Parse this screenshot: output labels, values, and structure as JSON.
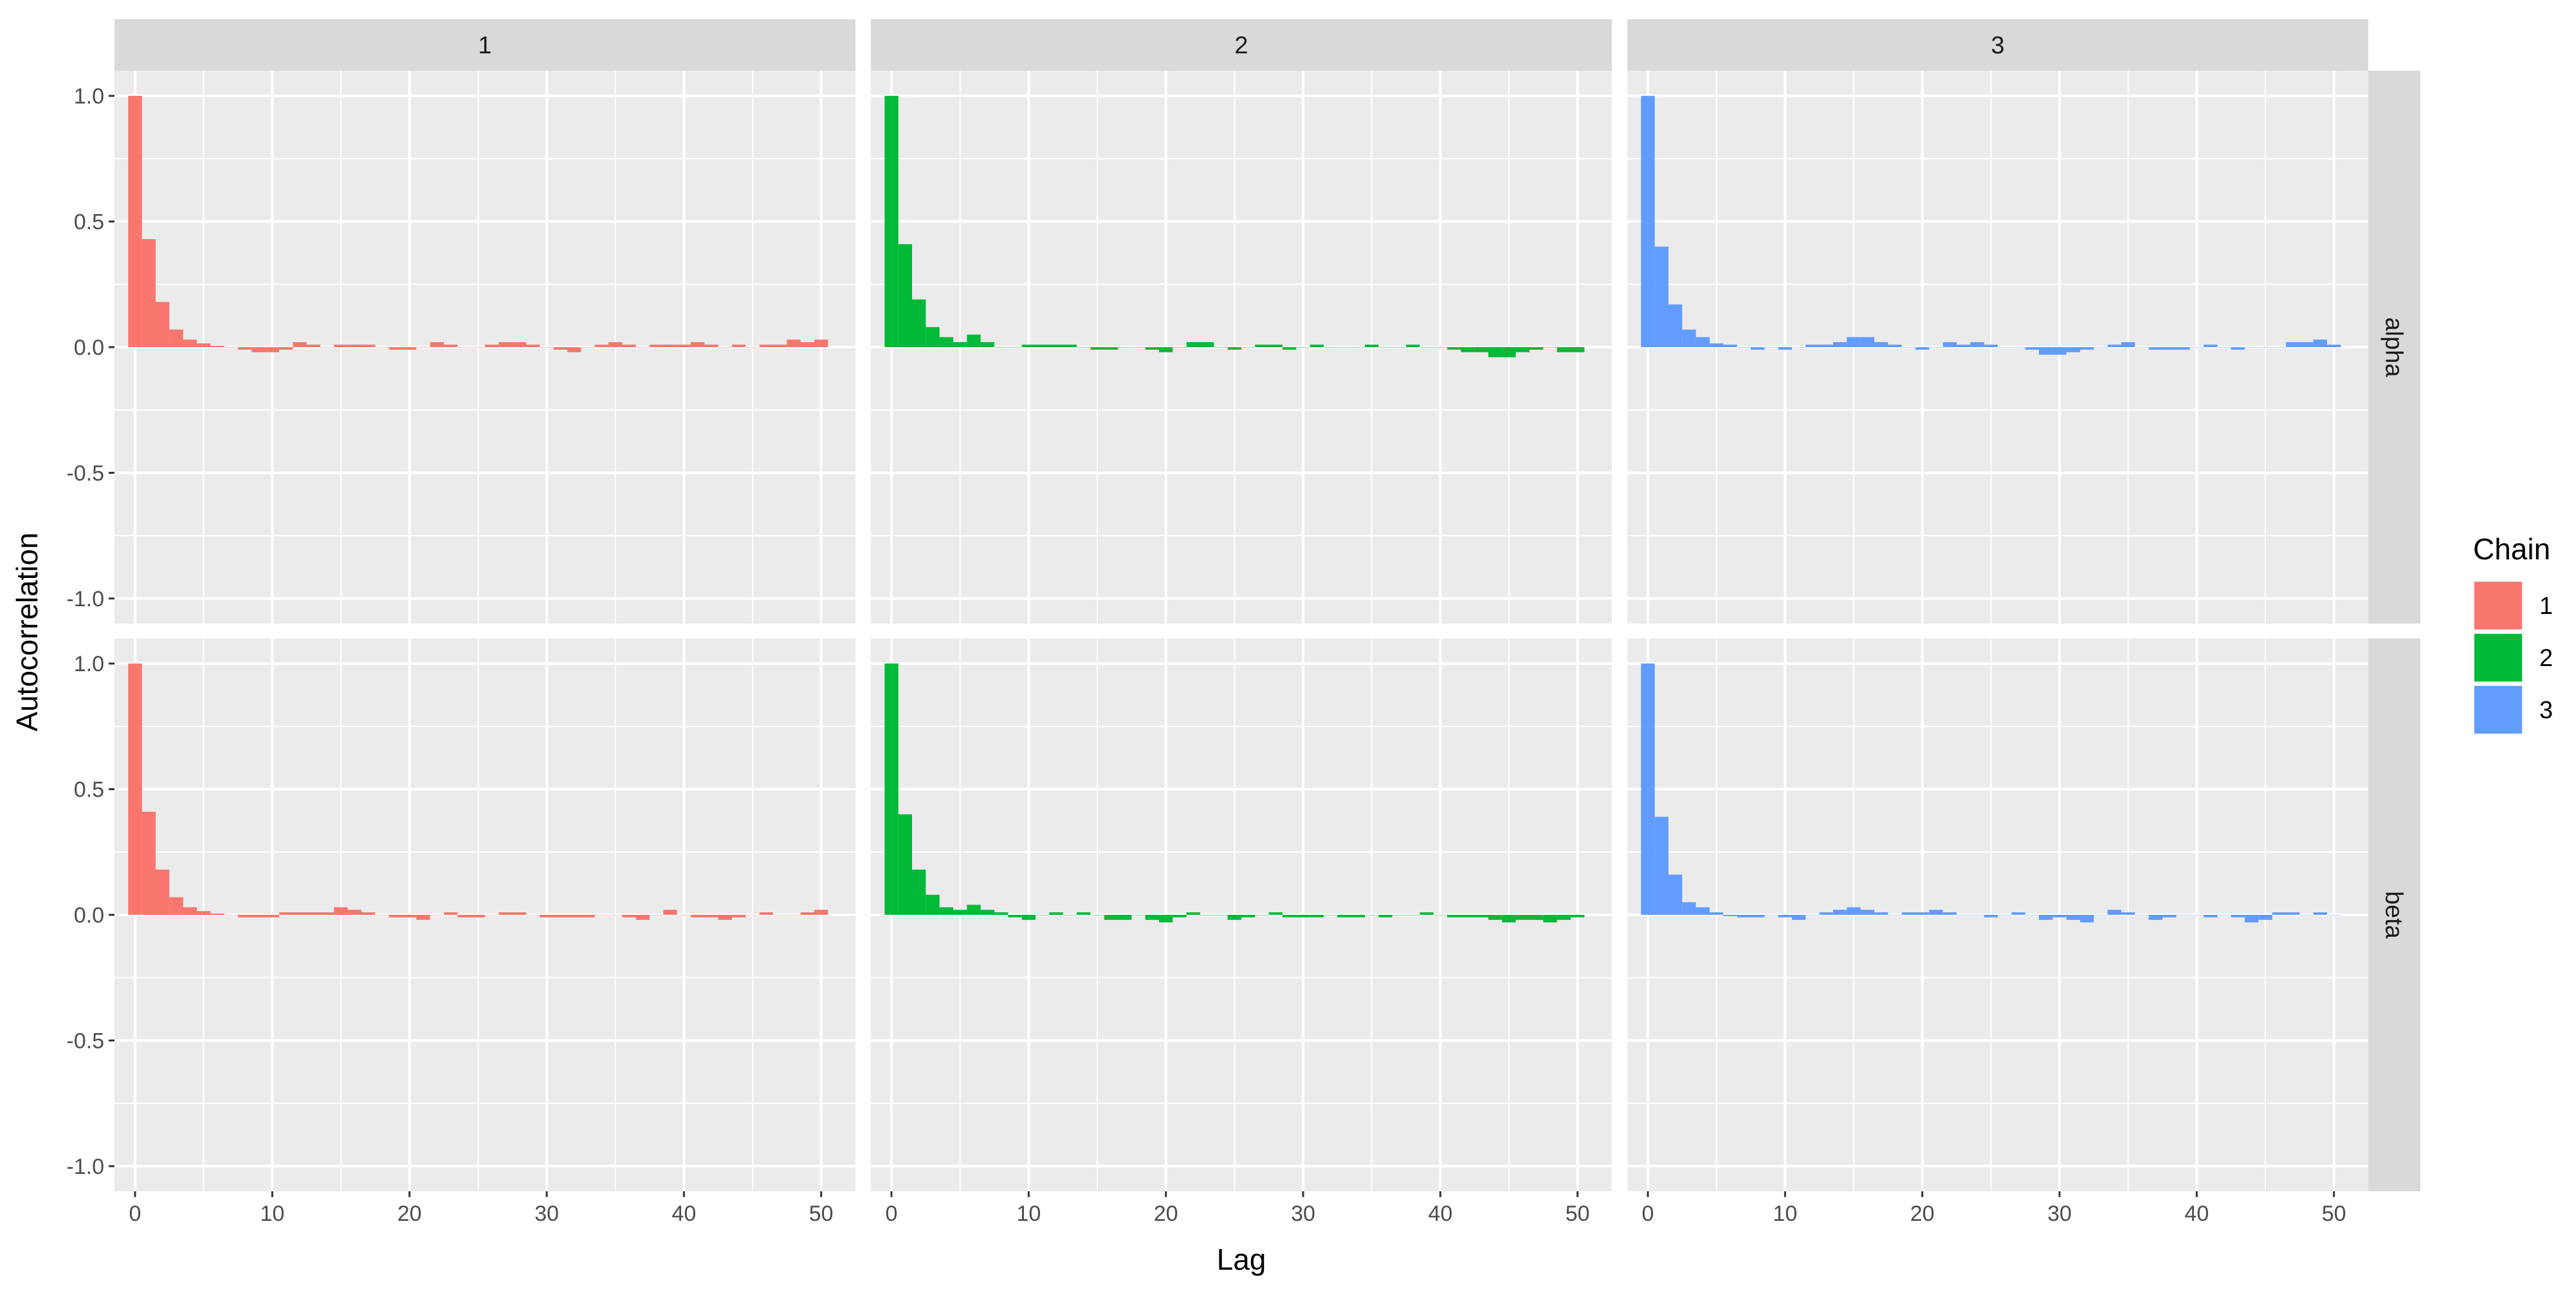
{
  "chart_data": {
    "type": "bar",
    "xlabel": "Lag",
    "ylabel": "Autocorrelation",
    "xlim": [
      -1.5,
      52.5
    ],
    "ylim": [
      -1.1,
      1.1
    ],
    "x_ticks": [
      0,
      10,
      20,
      30,
      40,
      50
    ],
    "x_tick_labels": [
      "0",
      "10",
      "20",
      "30",
      "40",
      "50"
    ],
    "y_ticks": [
      1.0,
      0.5,
      0.0,
      -0.5,
      -1.0
    ],
    "y_tick_labels": [
      "1.0",
      "0.5",
      "0.0",
      "-0.5",
      "-1.0"
    ],
    "grid": true,
    "legend": {
      "title": "Chain",
      "position": "right"
    },
    "chains": [
      {
        "name": "1",
        "color": "#F8766D"
      },
      {
        "name": "2",
        "color": "#00BA38"
      },
      {
        "name": "3",
        "color": "#619CFF"
      }
    ],
    "col_strips": [
      "1",
      "2",
      "3"
    ],
    "row_strips": [
      "alpha",
      "beta"
    ],
    "lags": [
      0,
      1,
      2,
      3,
      4,
      5,
      6,
      7,
      8,
      9,
      10,
      11,
      12,
      13,
      14,
      15,
      16,
      17,
      18,
      19,
      20,
      21,
      22,
      23,
      24,
      25,
      26,
      27,
      28,
      29,
      30,
      31,
      32,
      33,
      34,
      35,
      36,
      37,
      38,
      39,
      40,
      41,
      42,
      43,
      44,
      45,
      46,
      47,
      48,
      49,
      50
    ],
    "panels": [
      {
        "row": "alpha",
        "chain": "1",
        "values": [
          1.0,
          0.43,
          0.18,
          0.07,
          0.03,
          0.015,
          0.005,
          0.0,
          -0.01,
          -0.02,
          -0.02,
          -0.01,
          0.02,
          0.01,
          0.0,
          0.01,
          0.01,
          0.01,
          0.0,
          -0.01,
          -0.01,
          0.0,
          0.02,
          0.01,
          0.0,
          0.0,
          0.01,
          0.02,
          0.02,
          0.01,
          0.0,
          -0.01,
          -0.02,
          0.0,
          0.01,
          0.02,
          0.01,
          0.0,
          0.01,
          0.01,
          0.01,
          0.02,
          0.01,
          0.0,
          0.01,
          0.0,
          0.01,
          0.01,
          0.03,
          0.02,
          0.03
        ]
      },
      {
        "row": "alpha",
        "chain": "2",
        "values": [
          1.0,
          0.41,
          0.19,
          0.08,
          0.04,
          0.02,
          0.05,
          0.02,
          0.0,
          0.0,
          0.01,
          0.01,
          0.01,
          0.01,
          0.0,
          -0.01,
          -0.01,
          0.0,
          0.0,
          -0.01,
          -0.02,
          0.0,
          0.02,
          0.02,
          0.0,
          -0.01,
          0.0,
          0.01,
          0.01,
          -0.01,
          0.0,
          0.01,
          0.0,
          0.0,
          0.0,
          0.01,
          0.0,
          0.0,
          0.01,
          0.0,
          0.0,
          -0.01,
          -0.02,
          -0.02,
          -0.04,
          -0.04,
          -0.02,
          -0.01,
          0.0,
          -0.02,
          -0.02
        ]
      },
      {
        "row": "alpha",
        "chain": "3",
        "values": [
          1.0,
          0.4,
          0.17,
          0.07,
          0.04,
          0.015,
          0.01,
          0.0,
          -0.01,
          0.0,
          -0.01,
          0.0,
          0.01,
          0.01,
          0.02,
          0.04,
          0.04,
          0.02,
          0.01,
          0.0,
          -0.01,
          0.0,
          0.02,
          0.01,
          0.02,
          0.01,
          0.0,
          0.0,
          -0.01,
          -0.03,
          -0.03,
          -0.02,
          -0.01,
          0.0,
          0.01,
          0.02,
          0.0,
          -0.01,
          -0.01,
          -0.01,
          0.0,
          0.01,
          0.0,
          -0.01,
          0.0,
          0.0,
          0.0,
          0.02,
          0.02,
          0.03,
          0.01
        ]
      },
      {
        "row": "beta",
        "chain": "1",
        "values": [
          1.0,
          0.41,
          0.18,
          0.07,
          0.03,
          0.015,
          0.005,
          0.0,
          -0.01,
          -0.01,
          -0.01,
          0.01,
          0.01,
          0.01,
          0.01,
          0.03,
          0.02,
          0.01,
          0.0,
          -0.01,
          -0.01,
          -0.02,
          0.0,
          0.01,
          -0.01,
          -0.01,
          0.0,
          0.01,
          0.01,
          0.0,
          -0.01,
          -0.01,
          -0.01,
          -0.01,
          0.0,
          0.0,
          -0.01,
          -0.02,
          0.0,
          0.02,
          0.0,
          -0.01,
          -0.01,
          -0.02,
          -0.01,
          0.0,
          0.01,
          0.0,
          0.0,
          0.01,
          0.02
        ]
      },
      {
        "row": "beta",
        "chain": "2",
        "values": [
          1.0,
          0.4,
          0.18,
          0.08,
          0.03,
          0.02,
          0.04,
          0.02,
          0.01,
          -0.01,
          -0.02,
          0.0,
          0.01,
          0.0,
          0.01,
          0.0,
          -0.02,
          -0.02,
          0.0,
          -0.02,
          -0.03,
          -0.01,
          0.01,
          0.0,
          0.0,
          -0.02,
          -0.01,
          0.0,
          0.01,
          -0.01,
          -0.01,
          -0.01,
          0.0,
          -0.01,
          -0.01,
          0.0,
          -0.01,
          0.0,
          0.0,
          0.01,
          0.0,
          -0.01,
          -0.01,
          -0.01,
          -0.02,
          -0.03,
          -0.02,
          -0.02,
          -0.03,
          -0.02,
          -0.01
        ]
      },
      {
        "row": "beta",
        "chain": "3",
        "values": [
          1.0,
          0.39,
          0.16,
          0.05,
          0.03,
          0.01,
          -0.005,
          -0.01,
          -0.01,
          0.0,
          -0.01,
          -0.02,
          0.0,
          0.01,
          0.02,
          0.03,
          0.02,
          0.01,
          0.0,
          0.01,
          0.01,
          0.02,
          0.01,
          0.0,
          0.0,
          -0.01,
          0.0,
          0.01,
          0.0,
          -0.02,
          -0.01,
          -0.02,
          -0.03,
          0.0,
          0.02,
          0.01,
          0.0,
          -0.02,
          -0.01,
          0.0,
          0.0,
          -0.01,
          0.0,
          -0.01,
          -0.03,
          -0.02,
          0.01,
          0.01,
          0.0,
          0.01,
          0.0
        ]
      }
    ]
  }
}
